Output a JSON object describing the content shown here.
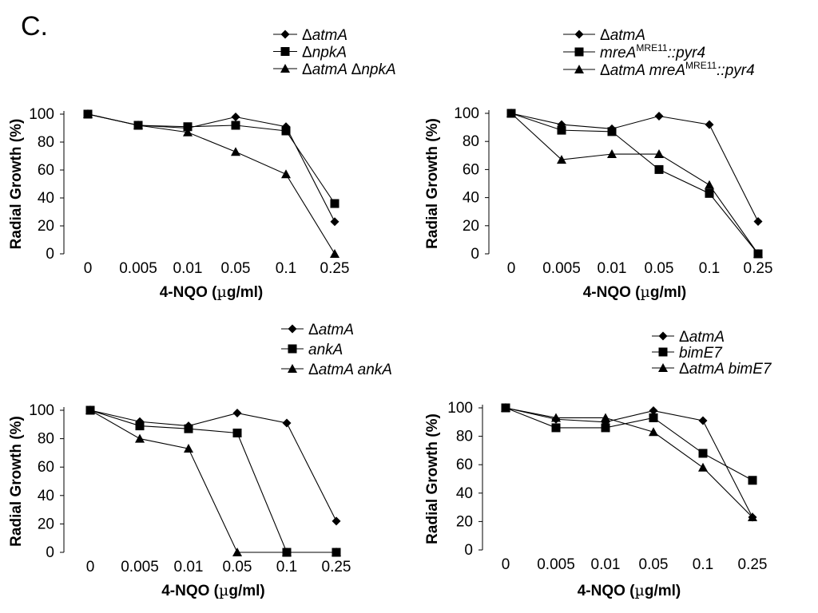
{
  "panel_label": "C.",
  "x_unit_prefix": "(",
  "x_unit_mu": "µ",
  "x_unit_suffix": "g/ml)",
  "chart_data": [
    {
      "type": "line",
      "categories": [
        "0",
        "0.005",
        "0.01",
        "0.05",
        "0.1",
        "0.25"
      ],
      "xlabel": "4-NQO (µg/ml)",
      "ylabel": "Radial Growth (%)",
      "ylim": [
        0,
        100
      ],
      "yticks": [
        "0",
        "20",
        "40",
        "60",
        "80",
        "100"
      ],
      "grid": false,
      "legend_position": "top-right",
      "series": [
        {
          "name": "ΔatmA",
          "legend": [
            {
              "t": "Δ"
            },
            {
              "t": "atmA",
              "i": true
            }
          ],
          "marker": "diamond",
          "values": [
            100,
            92,
            90,
            98,
            91,
            23
          ]
        },
        {
          "name": "ΔnpkA",
          "legend": [
            {
              "t": "Δ"
            },
            {
              "t": "npkA",
              "i": true
            }
          ],
          "marker": "square",
          "values": [
            100,
            92,
            91,
            92,
            88,
            36
          ]
        },
        {
          "name": "ΔatmA ΔnpkA",
          "legend": [
            {
              "t": "Δ"
            },
            {
              "t": "atmA ",
              "i": true
            },
            {
              "t": "Δ"
            },
            {
              "t": "npkA",
              "i": true
            }
          ],
          "marker": "triangle",
          "values": [
            100,
            92,
            87,
            73,
            57,
            0
          ]
        }
      ]
    },
    {
      "type": "line",
      "categories": [
        "0",
        "0.005",
        "0.01",
        "0.05",
        "0.1",
        "0.25"
      ],
      "xlabel": "4-NQO (µg/ml)",
      "ylabel": "Radial Growth (%)",
      "ylim": [
        0,
        100
      ],
      "yticks": [
        "0",
        "20",
        "40",
        "60",
        "80",
        "100"
      ],
      "grid": false,
      "legend_position": "top-right",
      "series": [
        {
          "name": "ΔatmA",
          "legend": [
            {
              "t": "Δ"
            },
            {
              "t": "atmA",
              "i": true
            }
          ],
          "marker": "diamond",
          "values": [
            100,
            92,
            89,
            98,
            92,
            23
          ]
        },
        {
          "name": "mreA MRE11 ::pyr4",
          "legend": [
            {
              "t": "mreA",
              "i": true
            },
            {
              "t": "MRE11",
              "sup": true
            },
            {
              "t": "::pyr4",
              "i": true
            }
          ],
          "marker": "square",
          "values": [
            100,
            88,
            87,
            60,
            43,
            0
          ]
        },
        {
          "name": "ΔatmA mreA MRE11 ::pyr4",
          "legend": [
            {
              "t": "Δ"
            },
            {
              "t": "atmA mreA",
              "i": true
            },
            {
              "t": "MRE11",
              "sup": true
            },
            {
              "t": "::pyr4",
              "i": true
            }
          ],
          "marker": "triangle",
          "values": [
            100,
            67,
            71,
            71,
            49,
            0
          ]
        }
      ]
    },
    {
      "type": "line",
      "categories": [
        "0",
        "0.005",
        "0.01",
        "0.05",
        "0.1",
        "0.25"
      ],
      "xlabel": "4-NQO (µg/ml)",
      "ylabel": "Radial Growth (%)",
      "ylim": [
        0,
        100
      ],
      "yticks": [
        "0",
        "20",
        "40",
        "60",
        "80",
        "100"
      ],
      "grid": false,
      "legend_position": "top-right",
      "series": [
        {
          "name": "ΔatmA",
          "legend": [
            {
              "t": "Δ"
            },
            {
              "t": "atmA",
              "i": true
            }
          ],
          "marker": "diamond",
          "values": [
            100,
            92,
            89,
            98,
            91,
            22
          ]
        },
        {
          "name": "ankA",
          "legend": [
            {
              "t": "ankA",
              "i": true
            }
          ],
          "marker": "square",
          "values": [
            100,
            89,
            87,
            84,
            0,
            0
          ]
        },
        {
          "name": "ΔatmA ankA",
          "legend": [
            {
              "t": "Δ"
            },
            {
              "t": "atmA ankA",
              "i": true
            }
          ],
          "marker": "triangle",
          "values": [
            100,
            80,
            73,
            0,
            0,
            0
          ]
        }
      ]
    },
    {
      "type": "line",
      "categories": [
        "0",
        "0.005",
        "0.01",
        "0.05",
        "0.1",
        "0.25"
      ],
      "xlabel": "4-NQO (µg/ml)",
      "ylabel": "Radial Growth (%)",
      "ylim": [
        0,
        100
      ],
      "yticks": [
        "0",
        "20",
        "40",
        "60",
        "80",
        "100"
      ],
      "grid": false,
      "legend_position": "top-right",
      "series": [
        {
          "name": "ΔatmA",
          "legend": [
            {
              "t": "Δ"
            },
            {
              "t": "atmA",
              "i": true
            }
          ],
          "marker": "diamond",
          "values": [
            100,
            92,
            90,
            98,
            91,
            23
          ]
        },
        {
          "name": "bimE7",
          "legend": [
            {
              "t": "bimE7",
              "i": true
            }
          ],
          "marker": "square",
          "values": [
            100,
            86,
            86,
            93,
            68,
            49
          ]
        },
        {
          "name": "ΔatmA bimE7",
          "legend": [
            {
              "t": "Δ"
            },
            {
              "t": "atmA bimE7",
              "i": true
            }
          ],
          "marker": "triangle",
          "values": [
            100,
            93,
            93,
            83,
            58,
            23
          ]
        }
      ]
    }
  ]
}
